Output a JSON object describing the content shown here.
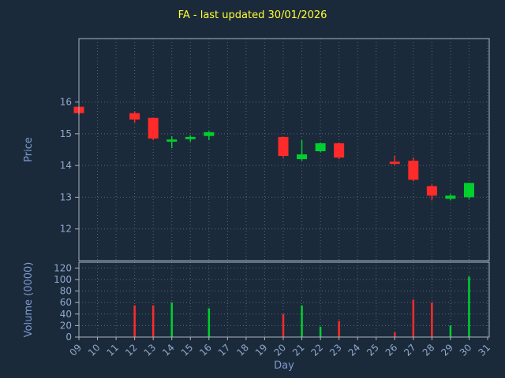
{
  "title": "FA - last updated 30/01/2026",
  "chart_data": {
    "type": "candlestick",
    "title": "FA - last updated 30/01/2026",
    "xlabel": "Day",
    "ylabel_price": "Price",
    "ylabel_volume": "Volume (0000)",
    "x_ticks": [
      "09",
      "10",
      "11",
      "12",
      "13",
      "14",
      "15",
      "16",
      "17",
      "18",
      "19",
      "20",
      "21",
      "22",
      "23",
      "24",
      "25",
      "26",
      "27",
      "28",
      "29",
      "30",
      "31"
    ],
    "price_ticks": [
      12,
      13,
      14,
      15,
      16
    ],
    "price_range": [
      11,
      18
    ],
    "volume_ticks": [
      0,
      20,
      40,
      60,
      80,
      100,
      120
    ],
    "volume_range": [
      0,
      130
    ],
    "grid": true,
    "colors": {
      "background": "#1b2a3a",
      "up": "#00cf2e",
      "down": "#ff2a2a",
      "title": "#ffff33",
      "axis_label": "#7d9bd2",
      "tick_text": "#8fa8cc",
      "spine": "#aab4be",
      "grid": "#55657a"
    },
    "candles": [
      {
        "day": 9,
        "open": 15.85,
        "high": 15.85,
        "low": 15.6,
        "close": 15.65,
        "volume": 0
      },
      {
        "day": 12,
        "open": 15.65,
        "high": 15.7,
        "low": 15.35,
        "close": 15.45,
        "volume": 55
      },
      {
        "day": 13,
        "open": 15.5,
        "high": 15.5,
        "low": 14.8,
        "close": 14.85,
        "volume": 55
      },
      {
        "day": 14,
        "open": 14.75,
        "high": 14.92,
        "low": 14.55,
        "close": 14.82,
        "volume": 60
      },
      {
        "day": 15,
        "open": 14.83,
        "high": 14.95,
        "low": 14.75,
        "close": 14.9,
        "volume": 0
      },
      {
        "day": 16,
        "open": 14.93,
        "high": 15.08,
        "low": 14.8,
        "close": 15.05,
        "volume": 50
      },
      {
        "day": 20,
        "open": 14.9,
        "high": 14.9,
        "low": 14.25,
        "close": 14.3,
        "volume": 40
      },
      {
        "day": 21,
        "open": 14.2,
        "high": 14.8,
        "low": 14.15,
        "close": 14.35,
        "volume": 55
      },
      {
        "day": 22,
        "open": 14.45,
        "high": 14.72,
        "low": 14.42,
        "close": 14.7,
        "volume": 18
      },
      {
        "day": 23,
        "open": 14.7,
        "high": 14.72,
        "low": 14.2,
        "close": 14.25,
        "volume": 28
      },
      {
        "day": 26,
        "open": 14.12,
        "high": 14.3,
        "low": 14.0,
        "close": 14.05,
        "volume": 8
      },
      {
        "day": 27,
        "open": 14.15,
        "high": 14.25,
        "low": 13.5,
        "close": 13.55,
        "volume": 65
      },
      {
        "day": 28,
        "open": 13.35,
        "high": 13.4,
        "low": 12.9,
        "close": 13.05,
        "volume": 60
      },
      {
        "day": 29,
        "open": 12.95,
        "high": 13.1,
        "low": 12.9,
        "close": 13.05,
        "volume": 20
      },
      {
        "day": 30,
        "open": 13.0,
        "high": 13.45,
        "low": 12.95,
        "close": 13.45,
        "volume": 105
      }
    ]
  }
}
